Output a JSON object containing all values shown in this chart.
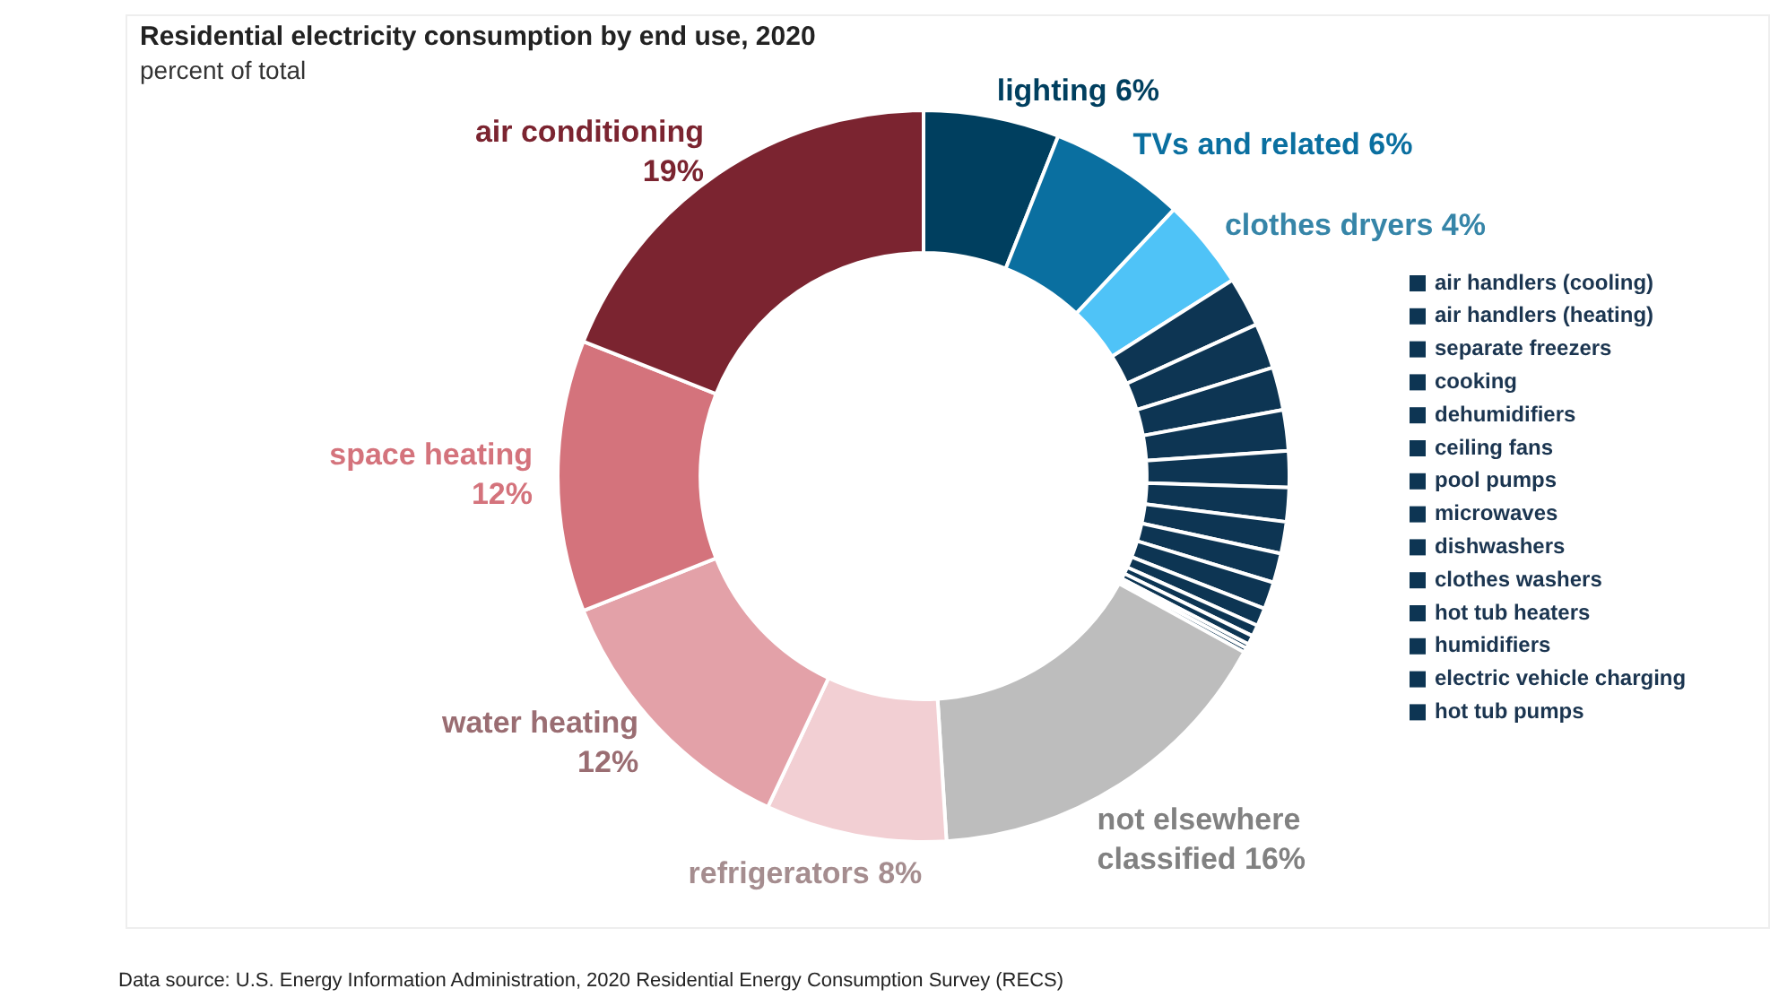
{
  "chart_data": {
    "type": "donut",
    "title": "Residential electricity consumption by end use, 2020",
    "subtitle": "percent of total",
    "categories": [
      "lighting",
      "TVs and related",
      "clothes dryers",
      "air handlers (cooling)",
      "air handlers (heating)",
      "separate freezers",
      "cooking",
      "dehumidifiers",
      "ceiling fans",
      "pool pumps",
      "microwaves",
      "dishwashers",
      "clothes washers",
      "hot tub heaters",
      "humidifiers",
      "electric vehicle charging",
      "hot tub pumps",
      "not elsewhere classified",
      "refrigerators",
      "water heating",
      "space heating",
      "air conditioning"
    ],
    "values": [
      6,
      6,
      4,
      2.2,
      2.0,
      1.9,
      1.8,
      1.6,
      1.5,
      1.4,
      1.3,
      1.2,
      0.8,
      0.5,
      0.4,
      0.2,
      0.2,
      16,
      8,
      12,
      12,
      19
    ],
    "value_labels": [
      "6%",
      "6%",
      "4%",
      null,
      null,
      null,
      null,
      null,
      null,
      null,
      null,
      null,
      null,
      null,
      null,
      null,
      null,
      "16%",
      "8%",
      "12%",
      "12%",
      "19%"
    ],
    "colors": [
      "#003f5f",
      "#0a6fa0",
      "#4fc3f7",
      "#0d3553",
      "#0d3553",
      "#0d3553",
      "#0d3553",
      "#0d3553",
      "#0d3553",
      "#0d3553",
      "#0d3553",
      "#0d3553",
      "#0d3553",
      "#0d3553",
      "#0d3553",
      "#0d3553",
      "#0d3553",
      "#bdbdbd",
      "#f2cfd3",
      "#e3a1a8",
      "#d4737c",
      "#7b2430"
    ],
    "legend": "right",
    "annotations": [
      "Data source: U.S. Energy Information Administration, 2020 Residential Energy Consumption Survey (RECS)"
    ]
  }
}
